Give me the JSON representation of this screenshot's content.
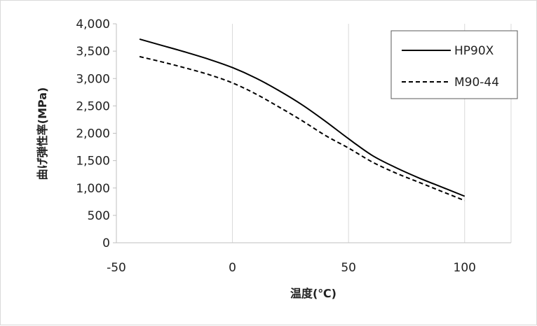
{
  "chart_data": {
    "type": "line",
    "xlabel": "温度(℃)",
    "ylabel": "曲げ弾性率(MPa)",
    "xlim": [
      -50,
      120
    ],
    "ylim": [
      0,
      4000
    ],
    "x_ticks": [
      "-50",
      "0",
      "50",
      "100"
    ],
    "x_tick_values": [
      -50,
      0,
      50,
      100
    ],
    "y_ticks": [
      "0",
      "500",
      "1,000",
      "1,500",
      "2,000",
      "2,500",
      "3,000",
      "3,500",
      "4,000"
    ],
    "y_tick_values": [
      0,
      500,
      1000,
      1500,
      2000,
      2500,
      3000,
      3500,
      4000
    ],
    "grid": "vertical",
    "legend_position": "top-right",
    "colors": {
      "line": "#000000",
      "grid": "#d9d9d9",
      "axis": "#bfbfbf"
    },
    "series": [
      {
        "name": "HP90X",
        "style": "solid",
        "x": [
          -40,
          -30,
          -20,
          -10,
          0,
          10,
          20,
          30,
          40,
          50,
          60,
          70,
          80,
          90,
          100
        ],
        "y": [
          3720,
          3600,
          3480,
          3350,
          3200,
          3010,
          2780,
          2520,
          2220,
          1900,
          1600,
          1380,
          1190,
          1020,
          850
        ]
      },
      {
        "name": "M90-44",
        "style": "dashed",
        "x": [
          -40,
          -30,
          -20,
          -10,
          0,
          10,
          20,
          30,
          40,
          50,
          60,
          70,
          80,
          90,
          100
        ],
        "y": [
          3400,
          3300,
          3190,
          3070,
          2920,
          2720,
          2480,
          2230,
          1960,
          1730,
          1480,
          1280,
          1110,
          940,
          770
        ]
      }
    ]
  }
}
